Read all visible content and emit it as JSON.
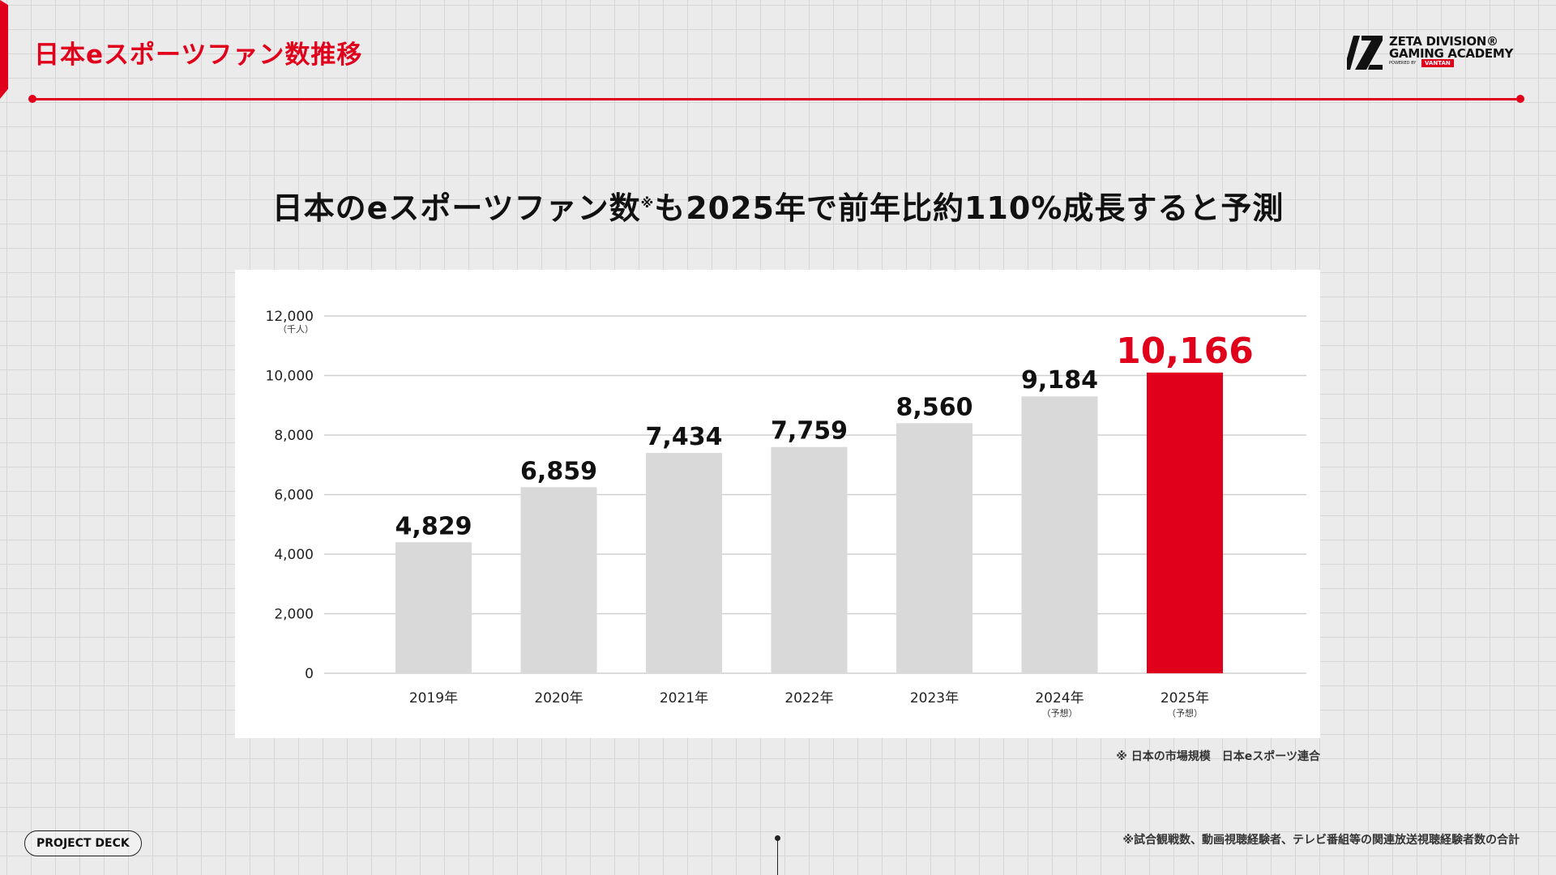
{
  "header": {
    "title": "日本eスポーツファン数推移",
    "logo": {
      "line1": "ZETA DIVISION®",
      "line2": "GAMING ACADEMY",
      "powered": "POWERED BY",
      "badge": "VANTAN"
    }
  },
  "headline": {
    "before": "日本のeスポーツファン数",
    "mark": "※",
    "after": "も2025年で前年比約110%成長すると予測"
  },
  "colors": {
    "accent": "#e0001b",
    "bar": "#d9d9d9",
    "text": "#111111"
  },
  "chart_data": {
    "type": "bar",
    "title": "",
    "xlabel": "",
    "ylabel": "",
    "y_unit": "（千人）",
    "ylim": [
      0,
      12000
    ],
    "yticks": [
      0,
      2000,
      4000,
      6000,
      8000,
      10000,
      12000
    ],
    "ytick_labels": [
      "0",
      "2,000",
      "4,000",
      "6,000",
      "8,000",
      "10,000",
      "12,000"
    ],
    "categories": [
      "2019年",
      "2020年",
      "2021年",
      "2022年",
      "2023年",
      "2024年",
      "2025年"
    ],
    "category_notes": [
      "",
      "",
      "",
      "",
      "",
      "（予想）",
      "（予想）"
    ],
    "values": [
      4829,
      6859,
      7434,
      7759,
      8560,
      9184,
      10166
    ],
    "bar_heights_as_drawn": [
      4400,
      6250,
      7400,
      7600,
      8400,
      9300,
      10100
    ],
    "value_labels": [
      "4,829",
      "6,859",
      "7,434",
      "7,759",
      "8,560",
      "9,184",
      "10,166"
    ],
    "highlight_index": 6,
    "grid": true
  },
  "notes": {
    "source": "※ 日本の市場規模　日本eスポーツ連合",
    "footnote": "※試合観戦数、動画視聴経験者、テレビ番組等の関連放送視聴経験者数の合計",
    "project_deck": "PROJECT DECK"
  }
}
